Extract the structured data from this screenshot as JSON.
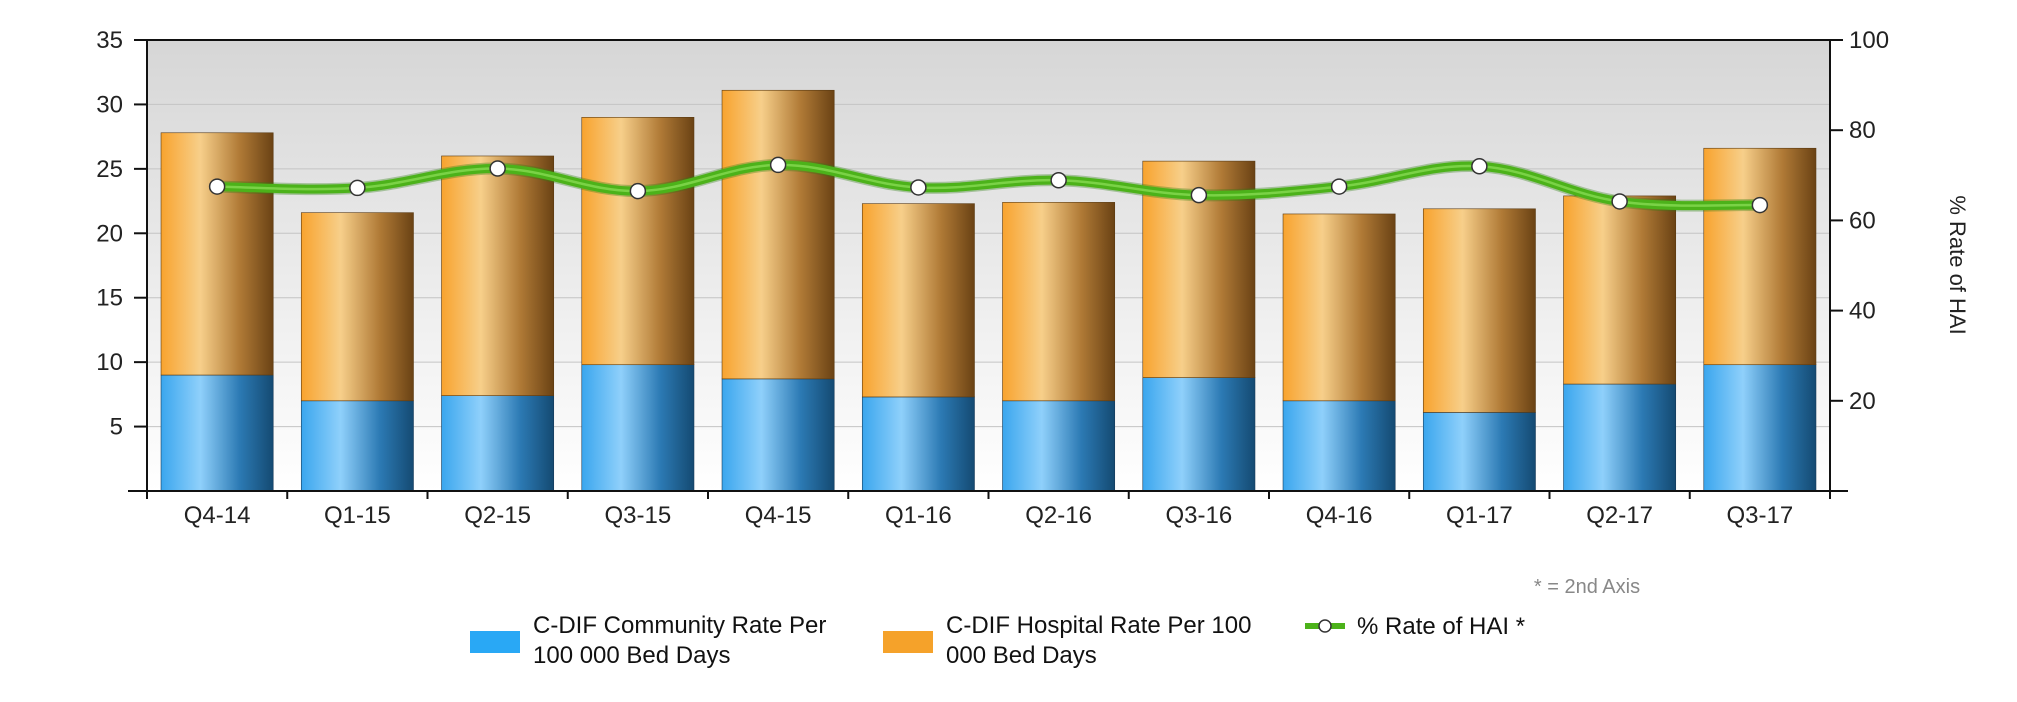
{
  "chart_data": {
    "type": "bar",
    "stacked": true,
    "categories": [
      "Q4-14",
      "Q1-15",
      "Q2-15",
      "Q3-15",
      "Q4-15",
      "Q1-16",
      "Q2-16",
      "Q3-16",
      "Q4-16",
      "Q1-17",
      "Q2-17",
      "Q3-17"
    ],
    "series": [
      {
        "name": "C-DIF Community Rate Per 100 000 Bed Days",
        "type": "bar",
        "axis": "left",
        "color": "#29a8f5",
        "values": [
          9.0,
          7.0,
          7.4,
          9.8,
          8.7,
          7.3,
          7.0,
          8.8,
          7.0,
          6.1,
          8.3,
          9.8
        ]
      },
      {
        "name": "C-DIF Hospital Rate Per 100 000 Bed Days",
        "type": "bar",
        "axis": "left",
        "color": "#f5a22a",
        "values": [
          18.8,
          14.6,
          18.6,
          19.2,
          22.4,
          15.0,
          15.4,
          16.8,
          14.5,
          15.8,
          14.6,
          16.8
        ]
      },
      {
        "name": "% Rate of HAI *",
        "type": "line",
        "axis": "right",
        "color": "#4cb21a",
        "values": [
          67.5,
          67.2,
          71.5,
          66.5,
          72.3,
          67.3,
          68.9,
          65.6,
          67.5,
          72.0,
          64.2,
          63.4
        ]
      }
    ],
    "ylim": [
      0,
      35
    ],
    "y_ticks": [
      5,
      10,
      15,
      20,
      25,
      30,
      35
    ],
    "y2lim": [
      0,
      100
    ],
    "y2_ticks": [
      20,
      40,
      60,
      80,
      100
    ],
    "ylabel": "",
    "y2label": "% Rate of HAI",
    "note": "* = 2nd Axis",
    "grid": true,
    "legend_position": "bottom",
    "legend": [
      {
        "lines": [
          "C-DIF Community Rate Per",
          "100 000 Bed Days"
        ],
        "kind": "bar",
        "color": "#29a8f5"
      },
      {
        "lines": [
          "C-DIF Hospital Rate Per 100",
          "000 Bed Days"
        ],
        "kind": "bar",
        "color": "#f5a22a"
      },
      {
        "lines": [
          "% Rate of HAI *"
        ],
        "kind": "line",
        "color": "#4cb21a"
      }
    ]
  }
}
